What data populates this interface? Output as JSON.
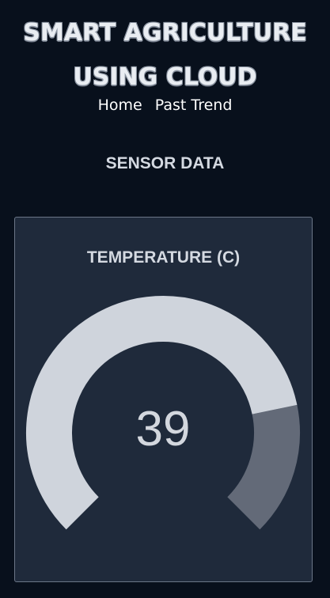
{
  "header": {
    "title_line1": "SMART AGRICULTURE",
    "title_line2": "USING CLOUD"
  },
  "nav": {
    "home": "Home",
    "past_trend": "Past Trend"
  },
  "section": {
    "heading": "SENSOR DATA"
  },
  "temperature_card": {
    "title": "TEMPERATURE (C)",
    "value": "39",
    "gauge_fill_fraction": 0.79,
    "colors": {
      "filled": "#cfd4dc",
      "remaining": "#636a78"
    }
  }
}
